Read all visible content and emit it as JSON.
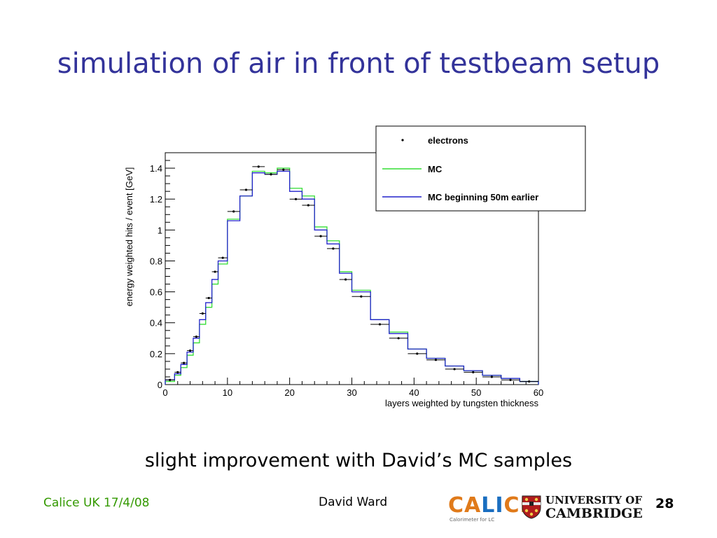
{
  "slide": {
    "title": "simulation of air in front of testbeam setup",
    "caption": "slight improvement with David’s MC samples",
    "footer_left": "Calice UK 17/4/08",
    "footer_center": "David Ward",
    "page_number": "28",
    "title_color": "#33339a",
    "footer_left_color": "#339900"
  },
  "logos": {
    "calice": {
      "letters": [
        "CA",
        "LI",
        "CE"
      ],
      "subtitle": "Calorimeter for LC"
    },
    "cambridge": {
      "line1": "UNIVERSITY OF",
      "line2": "CAMBRIDGE",
      "icon": "cambridge-shield-icon"
    }
  },
  "chart_data": {
    "type": "histogram",
    "xlabel": "layers weighted by tungsten thickness",
    "ylabel": "energy weighted hits / event [GeV]",
    "xlim": [
      0,
      60
    ],
    "ylim": [
      0,
      1.5
    ],
    "x_ticks": [
      "0",
      "10",
      "20",
      "30",
      "40",
      "50",
      "60"
    ],
    "y_ticks": [
      "0",
      "0.2",
      "0.4",
      "0.6",
      "0.8",
      "1",
      "1.2",
      "1.4"
    ],
    "bin_edges": [
      0,
      1.5,
      2.5,
      3.5,
      4.5,
      5.5,
      6.5,
      7.5,
      8.5,
      10,
      12,
      14,
      16,
      18,
      20,
      22,
      24,
      26,
      28,
      30,
      33,
      36,
      39,
      42,
      45,
      48,
      51,
      54,
      57,
      60
    ],
    "legend": [
      {
        "label": "electrons",
        "color": "#000000",
        "kind": "marker"
      },
      {
        "label": "MC",
        "color": "#33dd33",
        "kind": "line"
      },
      {
        "label": "MC beginning 50m earlier",
        "color": "#2222cc",
        "kind": "line"
      }
    ],
    "series": [
      {
        "name": "electrons",
        "values": [
          0.03,
          0.08,
          0.14,
          0.22,
          0.31,
          0.46,
          0.56,
          0.73,
          0.82,
          1.12,
          1.26,
          1.41,
          1.36,
          1.39,
          1.2,
          1.16,
          0.96,
          0.88,
          0.68,
          0.57,
          0.39,
          0.3,
          0.2,
          0.16,
          0.1,
          0.08,
          0.05,
          0.03,
          0.02
        ]
      },
      {
        "name": "MC",
        "values": [
          0.02,
          0.06,
          0.11,
          0.19,
          0.27,
          0.39,
          0.5,
          0.65,
          0.78,
          1.07,
          1.22,
          1.38,
          1.37,
          1.4,
          1.27,
          1.22,
          1.02,
          0.93,
          0.73,
          0.61,
          0.42,
          0.34,
          0.23,
          0.17,
          0.12,
          0.09,
          0.06,
          0.04,
          0.02
        ]
      },
      {
        "name": "MC beginning 50m earlier",
        "values": [
          0.03,
          0.07,
          0.13,
          0.21,
          0.3,
          0.42,
          0.53,
          0.68,
          0.8,
          1.06,
          1.22,
          1.37,
          1.36,
          1.38,
          1.25,
          1.2,
          1.0,
          0.91,
          0.72,
          0.6,
          0.42,
          0.33,
          0.23,
          0.17,
          0.12,
          0.09,
          0.06,
          0.04,
          0.02
        ]
      }
    ]
  }
}
